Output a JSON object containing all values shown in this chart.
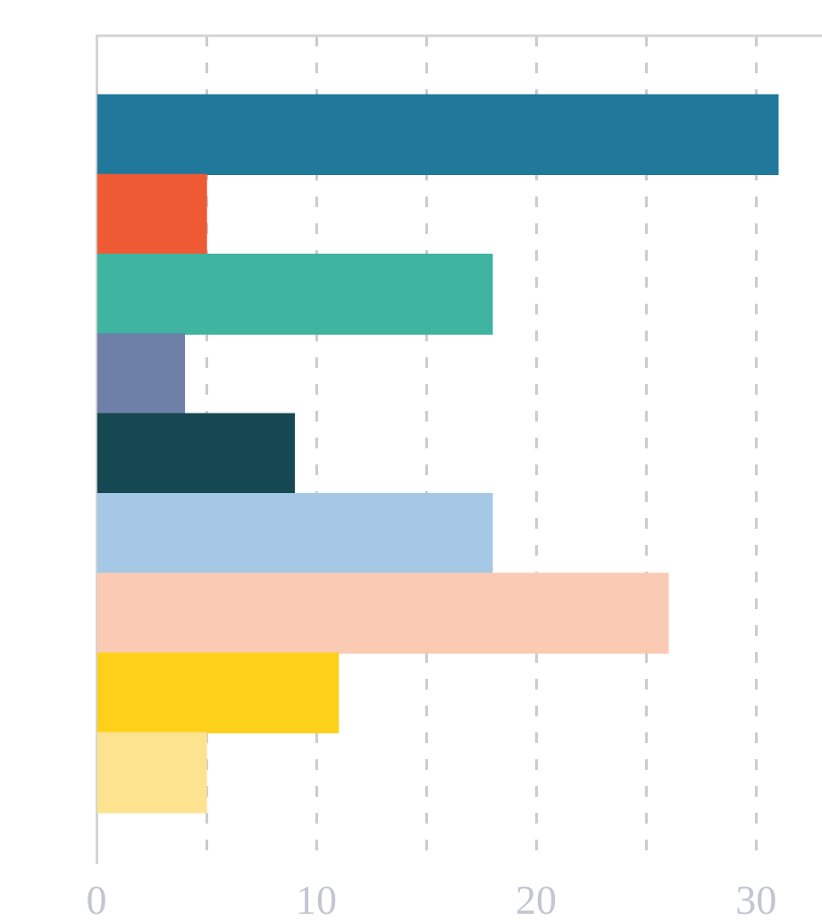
{
  "chart_data": {
    "type": "bar",
    "orientation": "horizontal",
    "categories": [
      null,
      null,
      null,
      null,
      null,
      null,
      null,
      null,
      null
    ],
    "values": [
      31,
      5,
      18,
      4,
      9,
      18,
      26,
      11,
      5
    ],
    "colors": [
      "#20799b",
      "#ee5a33",
      "#3eb4a1",
      "#6f80a8",
      "#164852",
      "#a5c8e6",
      "#fbcab3",
      "#fdd11a",
      "#fde390"
    ],
    "xlim": [
      0,
      33
    ],
    "xticks": [
      0,
      {
        "value": 5,
        "label": null
      },
      10,
      {
        "value": 15,
        "label": null
      },
      20,
      {
        "value": 25,
        "label": null
      },
      30
    ],
    "grid": "x",
    "tick_labels": "x"
  }
}
